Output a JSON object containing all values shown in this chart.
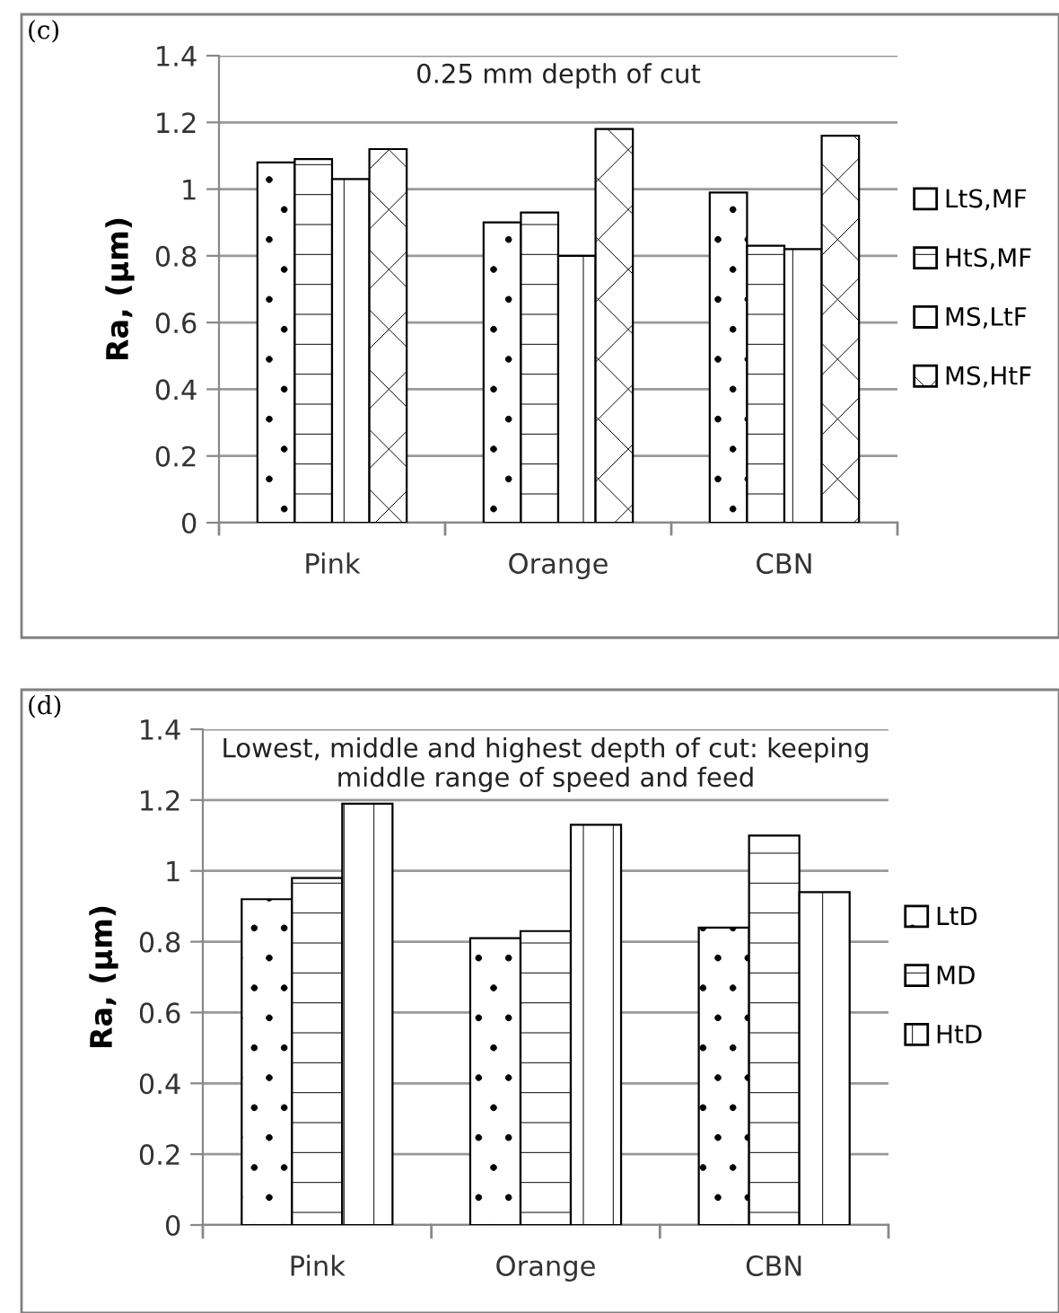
{
  "chart_data": [
    {
      "type": "bar",
      "title": "0.25 mm depth of cut",
      "ylabel": "Ra, (µm)",
      "annotations": [
        "(c)"
      ],
      "categories": [
        "Pink",
        "Orange",
        "CBN"
      ],
      "series": [
        {
          "name": "LtS,MF",
          "color": "#000000",
          "values": [
            1.08,
            0.9,
            0.99
          ]
        },
        {
          "name": "HtS,MF",
          "color": "#000000",
          "values": [
            1.09,
            0.93,
            0.83
          ]
        },
        {
          "name": "MS,LtF",
          "color": "#000000",
          "values": [
            1.03,
            0.8,
            0.82
          ]
        },
        {
          "name": "MS,HtF",
          "color": "#000000",
          "values": [
            1.12,
            1.18,
            1.16
          ]
        }
      ],
      "ylim": [
        0,
        1.4
      ],
      "yticks": [
        0,
        0.2,
        0.4,
        0.6,
        0.8,
        1,
        1.2,
        1.4
      ],
      "grid": "y",
      "legend": "right"
    },
    {
      "type": "bar",
      "title": "Lowest, middle and highest depth of cut: keeping\nmiddle range of speed and feed",
      "ylabel": "Ra, (µm)",
      "annotations": [
        "(d)"
      ],
      "categories": [
        "Pink",
        "Orange",
        "CBN"
      ],
      "series": [
        {
          "name": "LtD",
          "color": "#000000",
          "values": [
            0.92,
            0.81,
            0.84
          ]
        },
        {
          "name": "MD",
          "color": "#000000",
          "values": [
            0.98,
            0.83,
            1.1
          ]
        },
        {
          "name": "HtD",
          "color": "#000000",
          "values": [
            1.19,
            1.13,
            0.94
          ]
        }
      ],
      "ylim": [
        0,
        1.4
      ],
      "yticks": [
        0,
        0.2,
        0.4,
        0.6,
        0.8,
        1,
        1.2,
        1.4
      ],
      "grid": "y",
      "legend": "right"
    }
  ]
}
